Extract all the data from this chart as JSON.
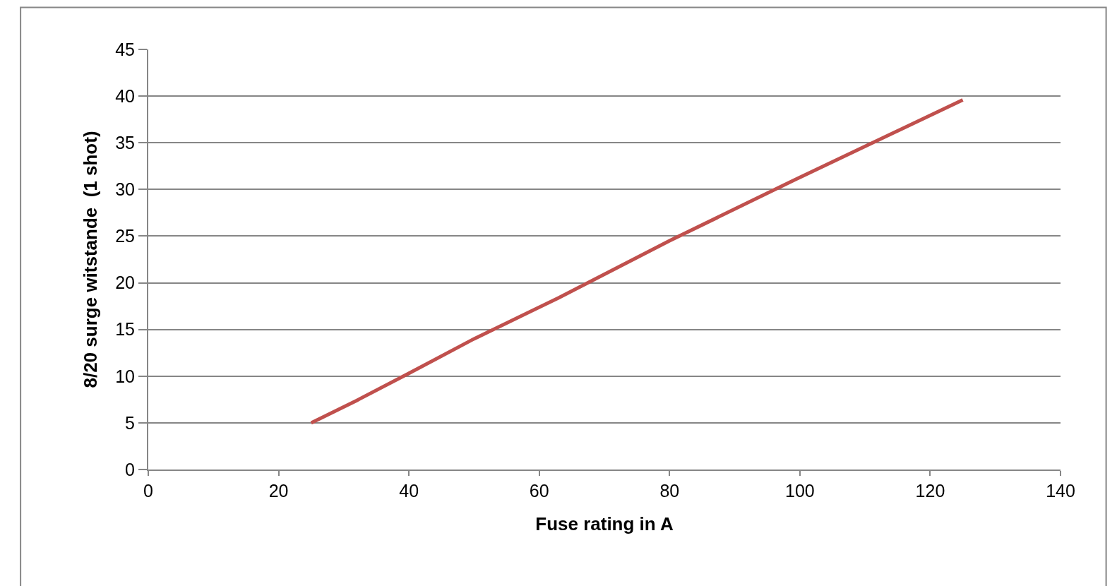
{
  "chart_data": {
    "type": "line",
    "xlabel": "Fuse rating in A",
    "ylabel": "8/20 surge witstande  (1 shot)",
    "x": [
      25,
      32,
      40,
      50,
      63,
      80,
      100,
      125
    ],
    "series": [
      {
        "color": "#c0504d",
        "values": [
          5.0,
          7.4,
          10.3,
          14.0,
          18.4,
          24.5,
          31.3,
          39.6
        ]
      }
    ],
    "xlim": [
      0,
      140
    ],
    "xticks": [
      0,
      20,
      40,
      60,
      80,
      100,
      120,
      140
    ],
    "ylim": [
      0,
      45
    ],
    "yticks": [
      0,
      5,
      10,
      15,
      20,
      25,
      30,
      35,
      40,
      45
    ],
    "grid": "y",
    "marker": "none",
    "line_style": "solid"
  }
}
